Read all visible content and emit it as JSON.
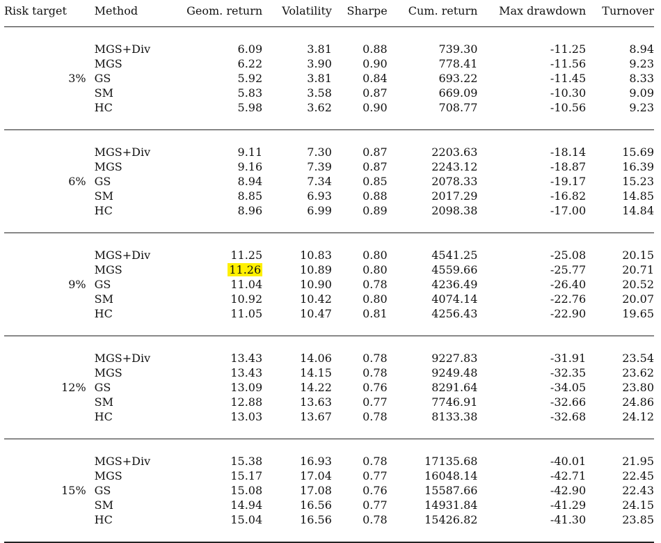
{
  "table": {
    "headers": {
      "risk_target": "Risk target",
      "method": "Method",
      "geom_return": "Geom. return",
      "volatility": "Volatility",
      "sharpe": "Sharpe",
      "cum_return": "Cum. return",
      "max_drawdown": "Max drawdown",
      "turnover": "Turnover"
    },
    "groups": [
      {
        "risk_target": "3%",
        "rows": [
          {
            "method": "MGS+Div",
            "geom_return": "6.09",
            "volatility": "3.81",
            "sharpe": "0.88",
            "cum_return": "739.30",
            "max_drawdown": "-11.25",
            "turnover": "8.94"
          },
          {
            "method": "MGS",
            "geom_return": "6.22",
            "volatility": "3.90",
            "sharpe": "0.90",
            "cum_return": "778.41",
            "max_drawdown": "-11.56",
            "turnover": "9.23"
          },
          {
            "method": "GS",
            "geom_return": "5.92",
            "volatility": "3.81",
            "sharpe": "0.84",
            "cum_return": "693.22",
            "max_drawdown": "-11.45",
            "turnover": "8.33"
          },
          {
            "method": "SM",
            "geom_return": "5.83",
            "volatility": "3.58",
            "sharpe": "0.87",
            "cum_return": "669.09",
            "max_drawdown": "-10.30",
            "turnover": "9.09"
          },
          {
            "method": "HC",
            "geom_return": "5.98",
            "volatility": "3.62",
            "sharpe": "0.90",
            "cum_return": "708.77",
            "max_drawdown": "-10.56",
            "turnover": "9.23"
          }
        ]
      },
      {
        "risk_target": "6%",
        "rows": [
          {
            "method": "MGS+Div",
            "geom_return": "9.11",
            "volatility": "7.30",
            "sharpe": "0.87",
            "cum_return": "2203.63",
            "max_drawdown": "-18.14",
            "turnover": "15.69"
          },
          {
            "method": "MGS",
            "geom_return": "9.16",
            "volatility": "7.39",
            "sharpe": "0.87",
            "cum_return": "2243.12",
            "max_drawdown": "-18.87",
            "turnover": "16.39"
          },
          {
            "method": "GS",
            "geom_return": "8.94",
            "volatility": "7.34",
            "sharpe": "0.85",
            "cum_return": "2078.33",
            "max_drawdown": "-19.17",
            "turnover": "15.23"
          },
          {
            "method": "SM",
            "geom_return": "8.85",
            "volatility": "6.93",
            "sharpe": "0.88",
            "cum_return": "2017.29",
            "max_drawdown": "-16.82",
            "turnover": "14.85"
          },
          {
            "method": "HC",
            "geom_return": "8.96",
            "volatility": "6.99",
            "sharpe": "0.89",
            "cum_return": "2098.38",
            "max_drawdown": "-17.00",
            "turnover": "14.84"
          }
        ]
      },
      {
        "risk_target": "9%",
        "rows": [
          {
            "method": "MGS+Div",
            "geom_return": "11.25",
            "volatility": "10.83",
            "sharpe": "0.80",
            "cum_return": "4541.25",
            "max_drawdown": "-25.08",
            "turnover": "20.15"
          },
          {
            "method": "MGS",
            "geom_return": "11.26",
            "volatility": "10.89",
            "sharpe": "0.80",
            "cum_return": "4559.66",
            "max_drawdown": "-25.77",
            "turnover": "20.71",
            "highlight_geom": true
          },
          {
            "method": "GS",
            "geom_return": "11.04",
            "volatility": "10.90",
            "sharpe": "0.78",
            "cum_return": "4236.49",
            "max_drawdown": "-26.40",
            "turnover": "20.52"
          },
          {
            "method": "SM",
            "geom_return": "10.92",
            "volatility": "10.42",
            "sharpe": "0.80",
            "cum_return": "4074.14",
            "max_drawdown": "-22.76",
            "turnover": "20.07"
          },
          {
            "method": "HC",
            "geom_return": "11.05",
            "volatility": "10.47",
            "sharpe": "0.81",
            "cum_return": "4256.43",
            "max_drawdown": "-22.90",
            "turnover": "19.65"
          }
        ]
      },
      {
        "risk_target": "12%",
        "rows": [
          {
            "method": "MGS+Div",
            "geom_return": "13.43",
            "volatility": "14.06",
            "sharpe": "0.78",
            "cum_return": "9227.83",
            "max_drawdown": "-31.91",
            "turnover": "23.54"
          },
          {
            "method": "MGS",
            "geom_return": "13.43",
            "volatility": "14.15",
            "sharpe": "0.78",
            "cum_return": "9249.48",
            "max_drawdown": "-32.35",
            "turnover": "23.62"
          },
          {
            "method": "GS",
            "geom_return": "13.09",
            "volatility": "14.22",
            "sharpe": "0.76",
            "cum_return": "8291.64",
            "max_drawdown": "-34.05",
            "turnover": "23.80"
          },
          {
            "method": "SM",
            "geom_return": "12.88",
            "volatility": "13.63",
            "sharpe": "0.77",
            "cum_return": "7746.91",
            "max_drawdown": "-32.66",
            "turnover": "24.86"
          },
          {
            "method": "HC",
            "geom_return": "13.03",
            "volatility": "13.67",
            "sharpe": "0.78",
            "cum_return": "8133.38",
            "max_drawdown": "-32.68",
            "turnover": "24.12"
          }
        ]
      },
      {
        "risk_target": "15%",
        "rows": [
          {
            "method": "MGS+Div",
            "geom_return": "15.38",
            "volatility": "16.93",
            "sharpe": "0.78",
            "cum_return": "17135.68",
            "max_drawdown": "-40.01",
            "turnover": "21.95"
          },
          {
            "method": "MGS",
            "geom_return": "15.17",
            "volatility": "17.04",
            "sharpe": "0.77",
            "cum_return": "16048.14",
            "max_drawdown": "-42.71",
            "turnover": "22.45"
          },
          {
            "method": "GS",
            "geom_return": "15.08",
            "volatility": "17.08",
            "sharpe": "0.76",
            "cum_return": "15587.66",
            "max_drawdown": "-42.90",
            "turnover": "22.43"
          },
          {
            "method": "SM",
            "geom_return": "14.94",
            "volatility": "16.56",
            "sharpe": "0.77",
            "cum_return": "14931.84",
            "max_drawdown": "-41.29",
            "turnover": "24.15"
          },
          {
            "method": "HC",
            "geom_return": "15.04",
            "volatility": "16.56",
            "sharpe": "0.78",
            "cum_return": "15426.82",
            "max_drawdown": "-41.30",
            "turnover": "23.85"
          }
        ]
      }
    ]
  },
  "colors": {
    "highlight": "#fff000",
    "rule": "#222222",
    "text": "#111111"
  }
}
